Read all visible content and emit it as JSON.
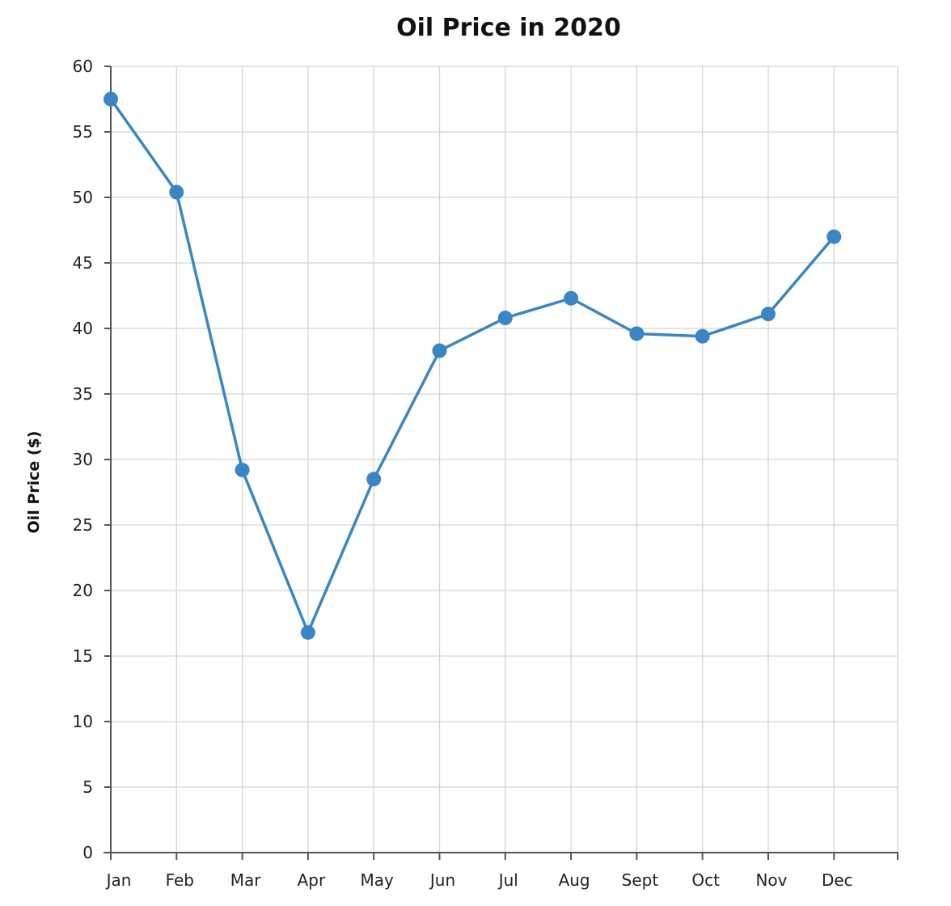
{
  "colors": {
    "series": "#3a86c5",
    "grid": "#d4d4d4",
    "axis": "#555555"
  },
  "chart_data": {
    "type": "line",
    "title": "Oil Price in 2020",
    "xlabel": "",
    "ylabel": "Oil Price ($)",
    "categories": [
      "Jan",
      "Feb",
      "Mar",
      "Apr",
      "May",
      "Jun",
      "Jul",
      "Aug",
      "Sept",
      "Oct",
      "Nov",
      "Dec"
    ],
    "series": [
      {
        "name": "Oil Price",
        "values": [
          57.5,
          50.4,
          29.2,
          16.8,
          28.5,
          38.3,
          40.8,
          42.3,
          39.6,
          39.4,
          41.1,
          47.0
        ]
      }
    ],
    "ylim": [
      0,
      60
    ],
    "yticks": [
      "0",
      "5",
      "10",
      "15",
      "20",
      "25",
      "30",
      "35",
      "40",
      "45",
      "50",
      "55",
      "60"
    ],
    "grid": true,
    "legend": "none"
  }
}
